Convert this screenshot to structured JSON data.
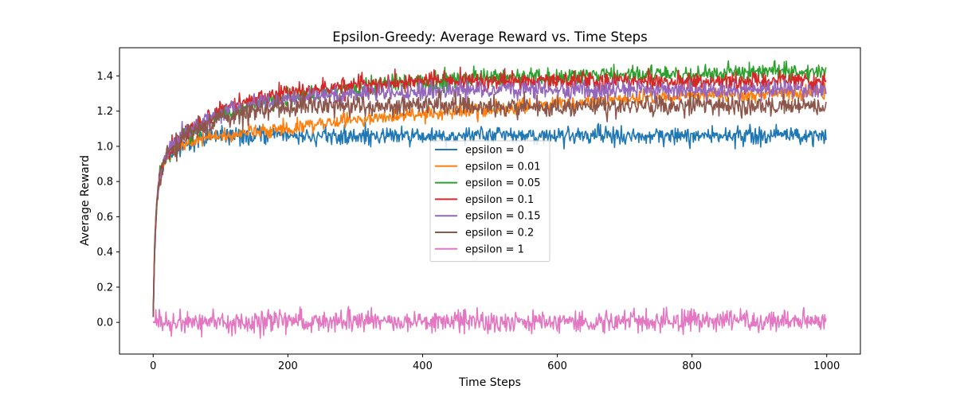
{
  "chart_data": {
    "type": "line",
    "title": "Epsilon-Greedy: Average Reward vs. Time Steps",
    "xlabel": "Time Steps",
    "ylabel": "Average Reward",
    "xlim": [
      -50,
      1050
    ],
    "ylim": [
      -0.18,
      1.56
    ],
    "xticks": [
      0,
      200,
      400,
      600,
      800,
      1000
    ],
    "xtick_labels": [
      "0",
      "200",
      "400",
      "600",
      "800",
      "1000"
    ],
    "yticks": [
      0.0,
      0.2,
      0.4,
      0.6,
      0.8,
      1.0,
      1.2,
      1.4
    ],
    "ytick_labels": [
      "0.0",
      "0.2",
      "0.4",
      "0.6",
      "0.8",
      "1.0",
      "1.2",
      "1.4"
    ],
    "grid": false,
    "legend_position": "center",
    "n_steps": 1000,
    "series": [
      {
        "name": "epsilon = 0",
        "color": "#1f77b4",
        "noise": 0.025,
        "x": [
          0,
          2,
          5,
          10,
          20,
          40,
          60,
          80,
          100,
          150,
          200,
          300,
          400,
          600,
          800,
          1000
        ],
        "y": [
          0.03,
          0.4,
          0.68,
          0.84,
          0.95,
          1.0,
          1.03,
          1.05,
          1.06,
          1.06,
          1.06,
          1.06,
          1.06,
          1.06,
          1.06,
          1.06
        ]
      },
      {
        "name": "epsilon = 0.01",
        "color": "#ff7f0e",
        "noise": 0.02,
        "x": [
          0,
          2,
          5,
          10,
          20,
          40,
          60,
          80,
          100,
          150,
          200,
          250,
          300,
          400,
          500,
          600,
          700,
          800,
          900,
          1000
        ],
        "y": [
          0.03,
          0.4,
          0.68,
          0.84,
          0.95,
          1.0,
          1.03,
          1.05,
          1.06,
          1.08,
          1.1,
          1.13,
          1.15,
          1.18,
          1.21,
          1.24,
          1.27,
          1.29,
          1.3,
          1.31
        ]
      },
      {
        "name": "epsilon = 0.05",
        "color": "#2ca02c",
        "noise": 0.025,
        "x": [
          0,
          2,
          5,
          10,
          20,
          40,
          60,
          80,
          100,
          150,
          200,
          300,
          400,
          500,
          600,
          700,
          800,
          900,
          1000
        ],
        "y": [
          0.03,
          0.4,
          0.68,
          0.85,
          0.96,
          1.04,
          1.09,
          1.14,
          1.18,
          1.24,
          1.28,
          1.33,
          1.37,
          1.39,
          1.4,
          1.41,
          1.41,
          1.42,
          1.42
        ]
      },
      {
        "name": "epsilon = 0.1",
        "color": "#d62728",
        "noise": 0.025,
        "x": [
          0,
          2,
          5,
          10,
          20,
          40,
          60,
          80,
          100,
          150,
          200,
          300,
          400,
          500,
          600,
          700,
          800,
          900,
          1000
        ],
        "y": [
          0.03,
          0.4,
          0.68,
          0.85,
          0.96,
          1.05,
          1.1,
          1.15,
          1.2,
          1.27,
          1.31,
          1.35,
          1.37,
          1.37,
          1.37,
          1.37,
          1.37,
          1.37,
          1.37
        ]
      },
      {
        "name": "epsilon = 0.15",
        "color": "#9467bd",
        "noise": 0.025,
        "x": [
          0,
          2,
          5,
          10,
          20,
          40,
          60,
          80,
          100,
          150,
          200,
          300,
          400,
          500,
          600,
          700,
          800,
          900,
          1000
        ],
        "y": [
          0.03,
          0.4,
          0.68,
          0.84,
          0.96,
          1.05,
          1.1,
          1.15,
          1.19,
          1.24,
          1.27,
          1.3,
          1.31,
          1.32,
          1.32,
          1.32,
          1.32,
          1.32,
          1.32
        ]
      },
      {
        "name": "epsilon = 0.2",
        "color": "#8c564b",
        "noise": 0.03,
        "x": [
          0,
          2,
          5,
          10,
          20,
          40,
          60,
          80,
          100,
          150,
          200,
          300,
          400,
          500,
          600,
          700,
          800,
          900,
          1000
        ],
        "y": [
          0.03,
          0.4,
          0.68,
          0.83,
          0.95,
          1.03,
          1.08,
          1.13,
          1.16,
          1.2,
          1.22,
          1.23,
          1.23,
          1.23,
          1.23,
          1.23,
          1.23,
          1.23,
          1.23
        ]
      },
      {
        "name": "epsilon = 1",
        "color": "#e377c2",
        "noise": 0.03,
        "x": [
          0,
          1000
        ],
        "y": [
          0.005,
          0.005
        ]
      }
    ]
  }
}
